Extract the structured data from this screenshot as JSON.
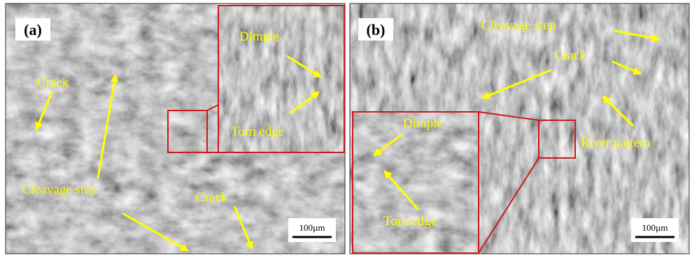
{
  "panels": [
    {
      "label": "(a)",
      "annotations": [
        "Crack",
        "Cleavage step",
        "Crack",
        "Dimple",
        "Torn edge"
      ],
      "scale_bar": "100µm"
    },
    {
      "label": "(b)",
      "annotations": [
        "Cleavage step",
        "Crack",
        "River pattern",
        "Dimple",
        "Torn edge"
      ],
      "scale_bar": "100µm"
    }
  ]
}
